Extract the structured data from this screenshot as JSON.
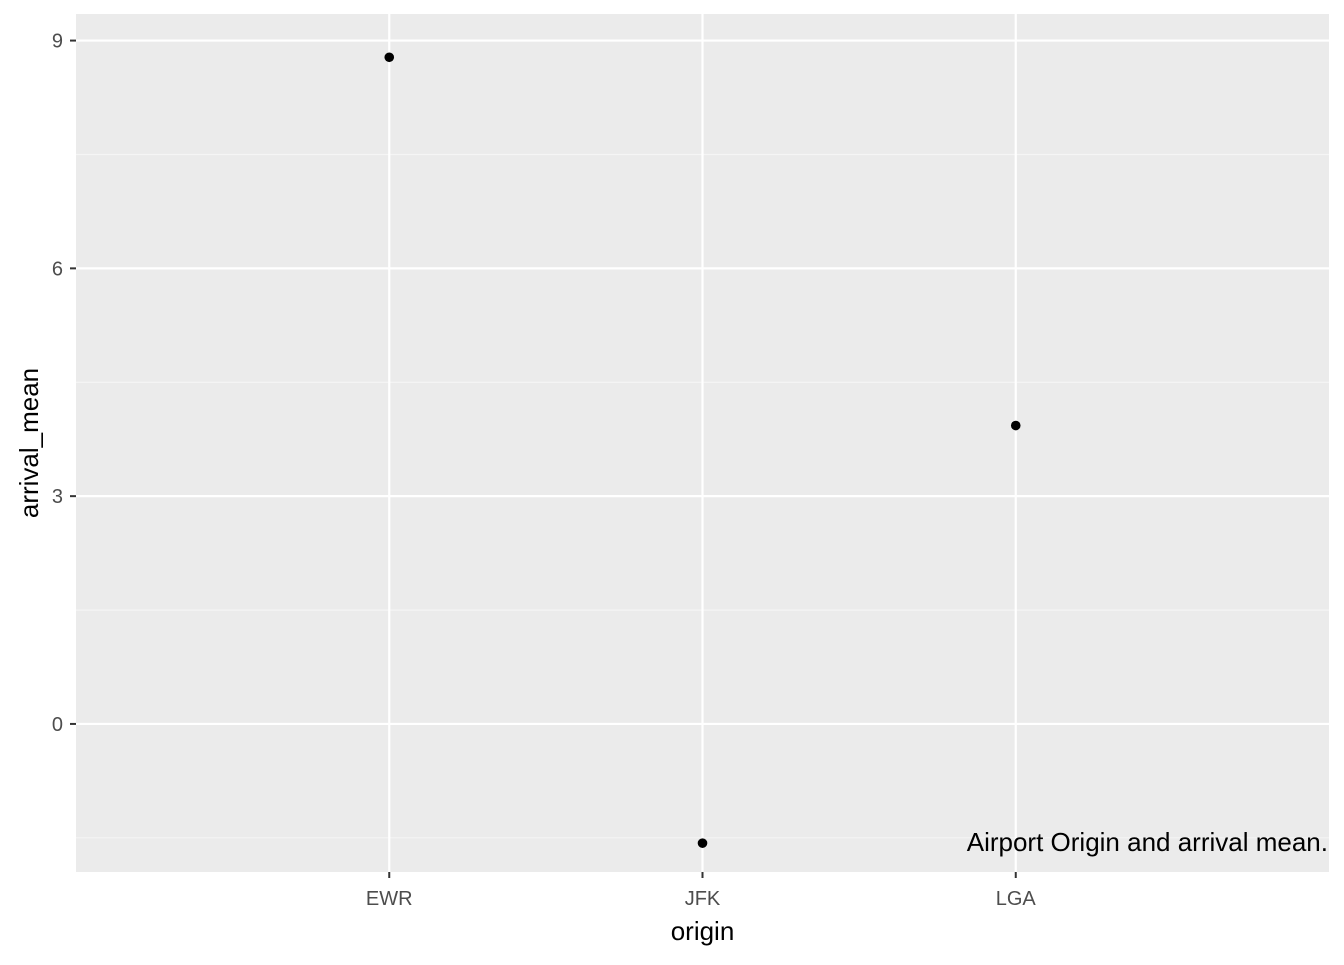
{
  "chart_data": {
    "type": "scatter",
    "xlabel": "origin",
    "ylabel": "arrival_mean",
    "categories": [
      "EWR",
      "JFK",
      "LGA"
    ],
    "series": [
      {
        "values": [
          8.78,
          -1.57,
          3.93
        ]
      }
    ],
    "ylim": [
      -1.95,
      9.35
    ],
    "y_ticks": [
      0,
      3,
      6,
      9
    ],
    "y_tick_labels": [
      "0",
      "3",
      "6",
      "9"
    ],
    "annotation": "Airport Origin and arrival mean.",
    "grid": true,
    "legend": "none",
    "colors": {
      "panel_background": "#ebebeb",
      "grid_major": "#ffffff",
      "grid_minor": "#f5f5f5",
      "point": "#000000",
      "tick_text": "#4d4d4d",
      "title_text": "#000000"
    }
  }
}
